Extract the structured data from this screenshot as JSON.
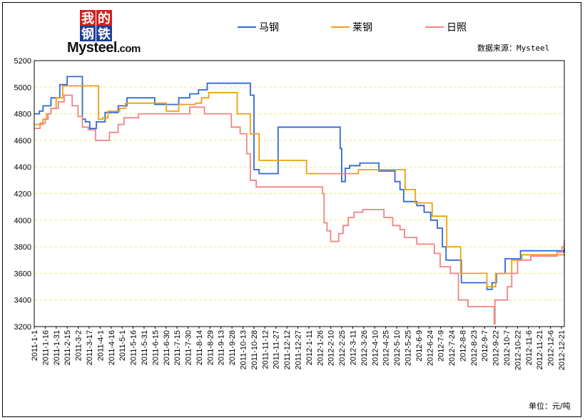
{
  "logo": {
    "chars": [
      "我",
      "的",
      "钢",
      "铁"
    ],
    "brand_main": "Mysteel",
    "brand_suffix": ".com",
    "colors": [
      "#d51f1f",
      "#d51f1f",
      "#1b3e9a",
      "#1b3e9a"
    ]
  },
  "source_text": "数据来源：Mysteel",
  "unit_text": "单位：元/吨",
  "chart_data": {
    "type": "line",
    "title": "",
    "xlabel": "",
    "ylabel": "",
    "ylim": [
      3200,
      5200
    ],
    "yticks": [
      3200,
      3400,
      3600,
      3800,
      4000,
      4200,
      4400,
      4600,
      4800,
      5000,
      5200
    ],
    "xlim": [
      "2011-01-01",
      "2012-12-27"
    ],
    "xtick_labels": [
      "2011-1-1",
      "2011-1-16",
      "2011-1-31",
      "2011-2-15",
      "2011-3-2",
      "2011-3-17",
      "2011-4-1",
      "2011-4-16",
      "2011-5-1",
      "2011-5-16",
      "2011-5-31",
      "2011-6-15",
      "2011-6-30",
      "2011-7-15",
      "2011-7-30",
      "2011-8-14",
      "2011-8-29",
      "2011-9-13",
      "2011-9-28",
      "2011-10-13",
      "2011-10-28",
      "2011-11-12",
      "2011-11-27",
      "2011-12-12",
      "2011-12-27",
      "2012-1-11",
      "2012-1-26",
      "2012-2-10",
      "2012-2-25",
      "2012-3-11",
      "2012-3-26",
      "2012-4-10",
      "2012-4-25",
      "2012-5-10",
      "2012-5-25",
      "2012-6-9",
      "2012-6-24",
      "2012-7-9",
      "2012-7-24",
      "2012-8-8",
      "2012-8-23",
      "2012-9-7",
      "2012-9-22",
      "2012-10-7",
      "2012-10-22",
      "2012-11-6",
      "2012-11-21",
      "2012-12-6",
      "2012-12-21"
    ],
    "grid": "horizontal-dashed",
    "legend_position": "top",
    "series": [
      {
        "name": "马钢",
        "color": "#3168d6",
        "points": [
          [
            "2011-01-01",
            4800
          ],
          [
            "2011-01-08",
            4820
          ],
          [
            "2011-01-13",
            4860
          ],
          [
            "2011-01-24",
            4920
          ],
          [
            "2011-02-05",
            5020
          ],
          [
            "2011-02-15",
            5080
          ],
          [
            "2011-03-08",
            4760
          ],
          [
            "2011-03-12",
            4740
          ],
          [
            "2011-03-18",
            4690
          ],
          [
            "2011-03-27",
            4740
          ],
          [
            "2011-04-08",
            4810
          ],
          [
            "2011-04-26",
            4860
          ],
          [
            "2011-05-08",
            4920
          ],
          [
            "2011-06-15",
            4870
          ],
          [
            "2011-07-18",
            4920
          ],
          [
            "2011-08-02",
            4950
          ],
          [
            "2011-08-14",
            4980
          ],
          [
            "2011-08-26",
            5030
          ],
          [
            "2011-10-24",
            4940
          ],
          [
            "2011-10-29",
            4380
          ],
          [
            "2011-11-05",
            4350
          ],
          [
            "2011-12-01",
            4700
          ],
          [
            "2012-02-24",
            4540
          ],
          [
            "2012-02-26",
            4290
          ],
          [
            "2012-03-02",
            4390
          ],
          [
            "2012-03-08",
            4410
          ],
          [
            "2012-03-22",
            4430
          ],
          [
            "2012-04-17",
            4370
          ],
          [
            "2012-05-09",
            4290
          ],
          [
            "2012-05-16",
            4230
          ],
          [
            "2012-05-21",
            4140
          ],
          [
            "2012-06-08",
            4110
          ],
          [
            "2012-06-18",
            4060
          ],
          [
            "2012-06-27",
            4000
          ],
          [
            "2012-07-06",
            3940
          ],
          [
            "2012-07-13",
            3800
          ],
          [
            "2012-07-18",
            3700
          ],
          [
            "2012-08-08",
            3530
          ],
          [
            "2012-09-12",
            3480
          ],
          [
            "2012-09-19",
            3530
          ],
          [
            "2012-09-25",
            3600
          ],
          [
            "2012-10-07",
            3710
          ],
          [
            "2012-10-28",
            3770
          ],
          [
            "2012-12-26",
            3760
          ],
          [
            "2012-12-27",
            3790
          ]
        ]
      },
      {
        "name": "莱钢",
        "color": "#f09e11",
        "points": [
          [
            "2011-01-01",
            4720
          ],
          [
            "2011-01-13",
            4760
          ],
          [
            "2011-01-18",
            4800
          ],
          [
            "2011-01-24",
            4840
          ],
          [
            "2011-01-31",
            4920
          ],
          [
            "2011-02-09",
            5010
          ],
          [
            "2011-03-30",
            4760
          ],
          [
            "2011-04-05",
            4770
          ],
          [
            "2011-04-12",
            4820
          ],
          [
            "2011-04-28",
            4840
          ],
          [
            "2011-05-06",
            4880
          ],
          [
            "2011-07-01",
            4820
          ],
          [
            "2011-07-18",
            4870
          ],
          [
            "2011-08-10",
            4880
          ],
          [
            "2011-08-18",
            4920
          ],
          [
            "2011-08-28",
            4960
          ],
          [
            "2011-10-06",
            4800
          ],
          [
            "2011-10-24",
            4650
          ],
          [
            "2011-11-05",
            4450
          ],
          [
            "2012-01-09",
            4350
          ],
          [
            "2012-03-20",
            4380
          ],
          [
            "2012-05-23",
            4230
          ],
          [
            "2012-06-06",
            4130
          ],
          [
            "2012-06-29",
            4030
          ],
          [
            "2012-07-19",
            3800
          ],
          [
            "2012-08-07",
            3600
          ],
          [
            "2012-09-12",
            3500
          ],
          [
            "2012-09-24",
            3600
          ],
          [
            "2012-10-16",
            3700
          ],
          [
            "2012-10-30",
            3740
          ],
          [
            "2012-12-27",
            3730
          ]
        ]
      },
      {
        "name": "日照",
        "color": "#f08484",
        "points": [
          [
            "2011-01-01",
            4690
          ],
          [
            "2011-01-09",
            4730
          ],
          [
            "2011-01-16",
            4760
          ],
          [
            "2011-01-20",
            4800
          ],
          [
            "2011-01-24",
            4840
          ],
          [
            "2011-02-03",
            4890
          ],
          [
            "2011-02-11",
            4940
          ],
          [
            "2011-02-22",
            4860
          ],
          [
            "2011-03-02",
            4780
          ],
          [
            "2011-03-08",
            4700
          ],
          [
            "2011-03-16",
            4680
          ],
          [
            "2011-03-26",
            4600
          ],
          [
            "2011-04-14",
            4660
          ],
          [
            "2011-04-26",
            4720
          ],
          [
            "2011-05-04",
            4770
          ],
          [
            "2011-05-24",
            4800
          ],
          [
            "2011-08-02",
            4850
          ],
          [
            "2011-08-22",
            4800
          ],
          [
            "2011-09-28",
            4700
          ],
          [
            "2011-10-10",
            4650
          ],
          [
            "2011-10-19",
            4500
          ],
          [
            "2011-10-24",
            4300
          ],
          [
            "2011-11-01",
            4250
          ],
          [
            "2012-01-31",
            4200
          ],
          [
            "2012-02-02",
            3980
          ],
          [
            "2012-02-06",
            3920
          ],
          [
            "2012-02-11",
            3840
          ],
          [
            "2012-02-22",
            3900
          ],
          [
            "2012-02-28",
            3960
          ],
          [
            "2012-03-06",
            4020
          ],
          [
            "2012-03-14",
            4060
          ],
          [
            "2012-03-26",
            4080
          ],
          [
            "2012-04-24",
            4020
          ],
          [
            "2012-05-06",
            3960
          ],
          [
            "2012-05-16",
            3930
          ],
          [
            "2012-05-22",
            3870
          ],
          [
            "2012-06-08",
            3820
          ],
          [
            "2012-07-02",
            3750
          ],
          [
            "2012-07-10",
            3650
          ],
          [
            "2012-07-24",
            3600
          ],
          [
            "2012-08-04",
            3400
          ],
          [
            "2012-08-17",
            3350
          ],
          [
            "2012-09-22",
            3220
          ],
          [
            "2012-09-23",
            3400
          ],
          [
            "2012-10-10",
            3500
          ],
          [
            "2012-10-16",
            3600
          ],
          [
            "2012-10-24",
            3700
          ],
          [
            "2012-11-11",
            3730
          ],
          [
            "2012-12-17",
            3760
          ],
          [
            "2012-12-24",
            3800
          ],
          [
            "2012-12-27",
            3850
          ]
        ]
      }
    ]
  }
}
